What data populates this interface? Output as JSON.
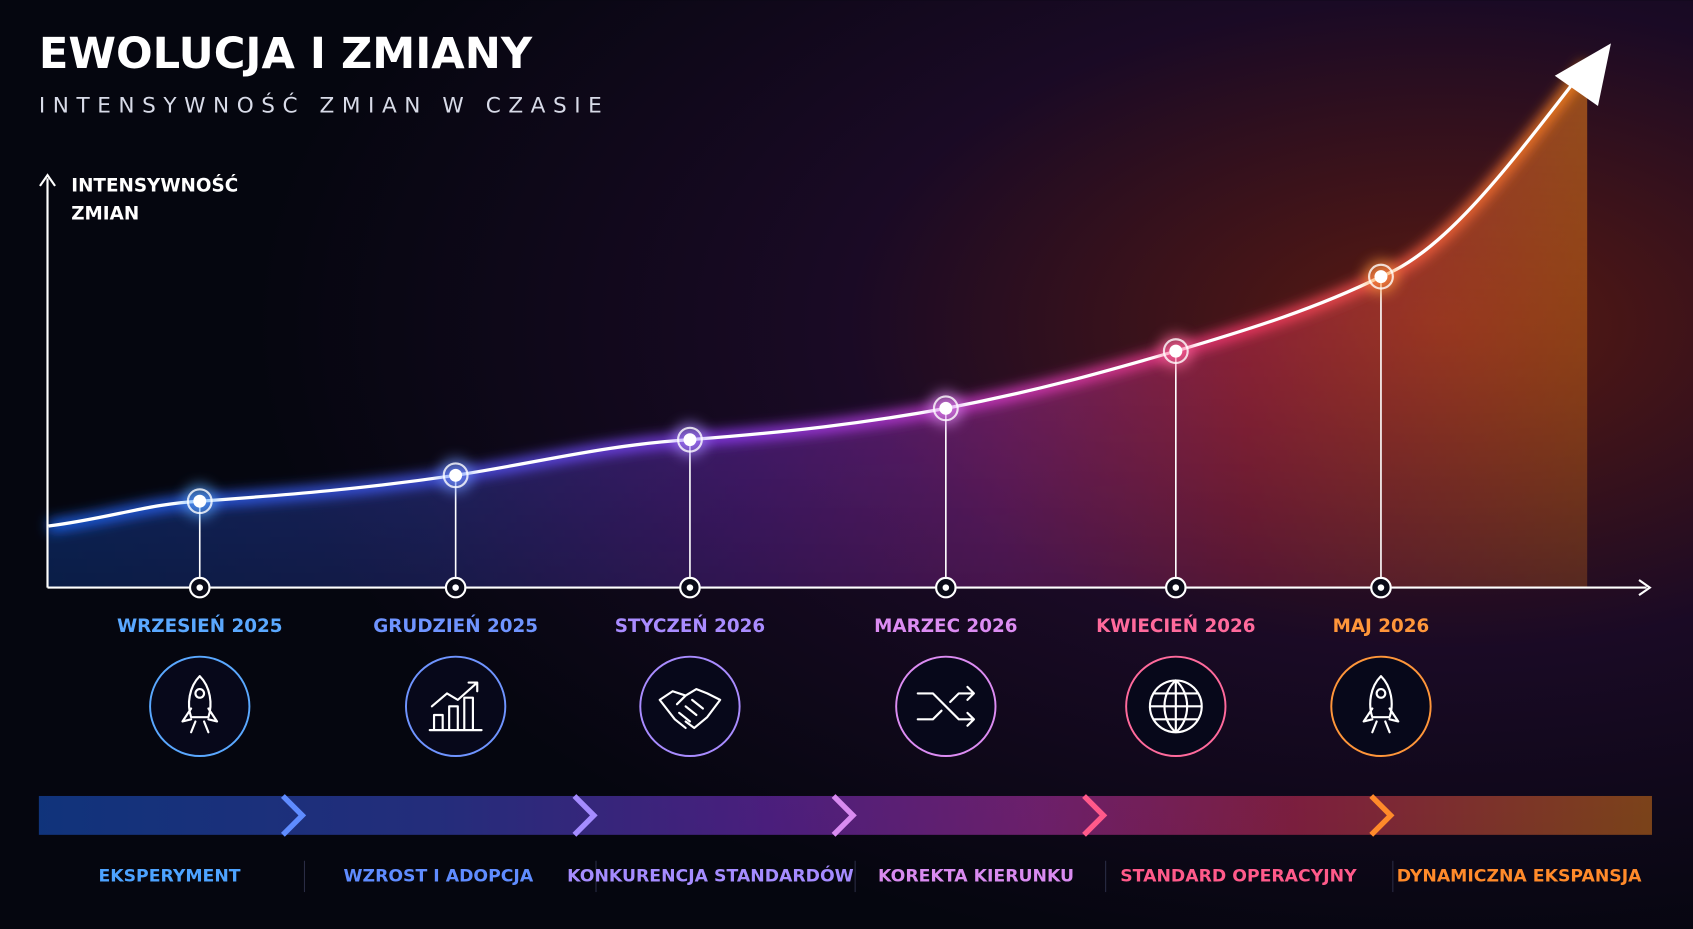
{
  "header": {
    "title": "EWOLUCJA I ZMIANY",
    "subtitle": "INTENSYWNOŚĆ ZMIAN W CZASIE"
  },
  "axis_label": [
    "INTENSYWNOŚĆ",
    "ZMIAN"
  ],
  "milestones": [
    {
      "label": "WRZESIEŃ 2025",
      "color": "#5aa8ff"
    },
    {
      "label": "GRUDZIEŃ 2025",
      "color": "#6f94ff"
    },
    {
      "label": "STYCZEŃ 2026",
      "color": "#a98cff"
    },
    {
      "label": "MARZEC 2026",
      "color": "#dc8cf2"
    },
    {
      "label": "KWIECIEŃ 2026",
      "color": "#ff6a9c"
    },
    {
      "label": "MAJ 2026",
      "color": "#ff963a"
    }
  ],
  "phases": [
    {
      "label": "EKSPERYMENT",
      "color": "#4da3ff"
    },
    {
      "label": "WZROST I ADOPCJA",
      "color": "#5f8cff"
    },
    {
      "label": "KONKURENCJA STANDARDÓW",
      "color": "#a58cff"
    },
    {
      "label": "KOREKTA KIERUNKU",
      "color": "#d98bf0"
    },
    {
      "label": "STANDARD OPERACYJNY",
      "color": "#ff5a8a"
    },
    {
      "label": "DYNAMICZNA EKSPANSJA",
      "color": "#ff8a2a"
    }
  ]
}
